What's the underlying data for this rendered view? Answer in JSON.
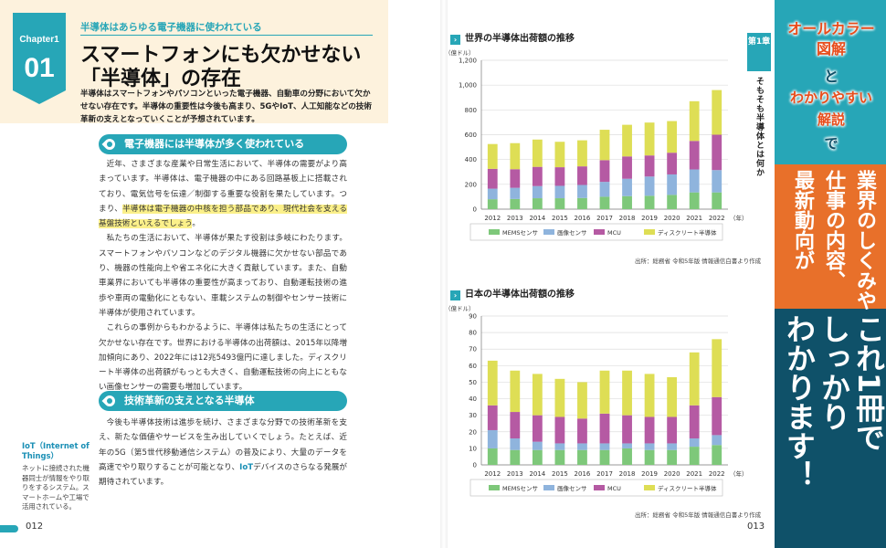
{
  "left_page": {
    "chapter_label": "Chapter1",
    "chapter_number": "01",
    "kicker": "半導体はあらゆる電子機器に使われている",
    "title_line1": "スマートフォンにも欠かせない",
    "title_line2": "「半導体」の存在",
    "lead": "半導体はスマートフォンやパソコンといった電子機器、自動車の分野において欠かせない存在です。半導体の重要性は今後も高まり、5GやIoT、人工知能などの技術革新の支えとなっていくことが予想されています。",
    "section1_heading": "電子機器には半導体が多く使われている",
    "section1_p1_before": "近年、さまざまな産業や日常生活において、半導体の需要がより高まっています。半導体は、電子機器の中にある回路基板上に搭載されており、電気信号を伝達／制御する重要な役割を果たしています。つまり、",
    "section1_p1_highlight": "半導体は電子機器の中核を担う部品であり、現代社会を支える基盤技術といえるでしょう",
    "section1_p1_after": "。",
    "section1_p2": "私たちの生活において、半導体が果たす役割は多岐にわたります。スマートフォンやパソコンなどのデジタル機器に欠かせない部品であり、機器の性能向上や省エネ化に大きく貢献しています。また、自動車業界においても半導体の重要性が高まっており、自動運転技術の進歩や車両の電動化にともない、車載システムの制御やセンサー技術に半導体が使用されています。",
    "section1_p3": "これらの事例からもわかるように、半導体は私たちの生活にとって欠かせない存在です。世界における半導体の出荷額は、2015年以降増加傾向にあり、2022年には12兆5493億円に達しました。ディスクリート半導体の出荷額がもっとも大きく、自動運転技術の向上にともない画像センサーの需要も増加しています。",
    "section2_heading": "技術革新の支えとなる半導体",
    "section2_p1_before": "今後も半導体技術は進歩を続け、さまざまな分野での技術革新を支え、新たな価値やサービスを生み出していくでしょう。たとえば、近年の5G（第5世代移動通信システム）の普及により、大量のデータを高速でやり取りすることが可能となり、",
    "section2_p1_term": "IoT",
    "section2_p1_after": "デバイスのさらなる発展が期待されています。",
    "sidenote_term": "IoT（Internet of Things）",
    "sidenote_desc": "ネットに接続された機器同士が情報をやり取りをするシステム。スマートホームや工場で活用されている。",
    "page_number": "012"
  },
  "right_page": {
    "page_number": "013",
    "chapter_strip": "第1章",
    "chapter_vertical": "そもそも半導体とは何か",
    "source_note": "出所：総務省 令和5年版 情報通信白書より作成"
  },
  "cover": {
    "line1": "オールカラー",
    "line2": "図解",
    "line3": "と",
    "line4": "わかりやすい",
    "line5": "解説",
    "line6": "で",
    "mid_col1": "業界のしくみや",
    "mid_col2": "仕事の内容、",
    "mid_col3": "最新動向が",
    "bottom_col1": "これ1冊で",
    "bottom_col2": "しっかり",
    "bottom_col3": "わかります！"
  },
  "colors": {
    "accent": "#27a6b7",
    "mems": "#7ec87a",
    "image_sensor": "#8fb4dd",
    "mcu": "#b55aa3",
    "discrete": "#dede55"
  },
  "chart_data": [
    {
      "type": "bar",
      "stacked": true,
      "title": "世界の半導体出荷額の推移",
      "unit_label": "（億ドル）",
      "x_unit": "（年）",
      "categories": [
        "2012",
        "2013",
        "2014",
        "2015",
        "2016",
        "2017",
        "2018",
        "2019",
        "2020",
        "2021",
        "2022"
      ],
      "ylim": [
        0,
        1200
      ],
      "yticks": [
        "0",
        "200",
        "400",
        "600",
        "800",
        "1,000",
        "1,200"
      ],
      "series": [
        {
          "name": "MEMSセンサ",
          "values": [
            80,
            82,
            88,
            88,
            90,
            100,
            105,
            108,
            115,
            135,
            135
          ]
        },
        {
          "name": "画像センサ",
          "values": [
            85,
            90,
            98,
            100,
            105,
            120,
            140,
            155,
            165,
            185,
            180
          ]
        },
        {
          "name": "MCU",
          "values": [
            160,
            150,
            155,
            150,
            150,
            175,
            180,
            170,
            175,
            230,
            285
          ]
        },
        {
          "name": "ディスクリート半導体",
          "values": [
            200,
            210,
            220,
            205,
            210,
            245,
            255,
            265,
            255,
            320,
            360
          ]
        }
      ],
      "legend_position": "bottom",
      "grid": true
    },
    {
      "type": "bar",
      "stacked": true,
      "title": "日本の半導体出荷額の推移",
      "unit_label": "（億ドル）",
      "x_unit": "（年）",
      "categories": [
        "2012",
        "2013",
        "2014",
        "2015",
        "2016",
        "2017",
        "2018",
        "2019",
        "2020",
        "2021",
        "2022"
      ],
      "ylim": [
        0,
        90
      ],
      "yticks": [
        "0",
        "10",
        "20",
        "30",
        "40",
        "50",
        "60",
        "70",
        "80",
        "90"
      ],
      "series": [
        {
          "name": "MEMSセンサ",
          "values": [
            10,
            9,
            9,
            9,
            9,
            9,
            10,
            9,
            9,
            11,
            12
          ]
        },
        {
          "name": "画像センサ",
          "values": [
            11,
            7,
            5,
            4,
            4,
            4,
            3,
            4,
            4,
            5,
            6
          ]
        },
        {
          "name": "MCU",
          "values": [
            15,
            16,
            16,
            16,
            15,
            18,
            17,
            16,
            16,
            20,
            23
          ]
        },
        {
          "name": "ディスクリート半導体",
          "values": [
            27,
            25,
            25,
            23,
            22,
            26,
            27,
            26,
            24,
            32,
            35
          ]
        }
      ],
      "legend_position": "bottom",
      "grid": true
    }
  ]
}
